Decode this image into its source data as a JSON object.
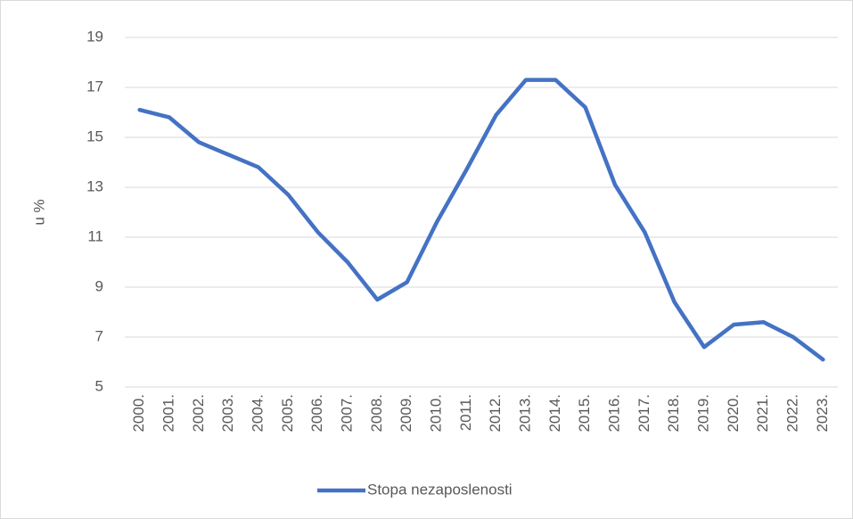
{
  "chart_data": {
    "type": "line",
    "y_label": "u %",
    "categories": [
      "2000.",
      "2001.",
      "2002.",
      "2003.",
      "2004.",
      "2005.",
      "2006.",
      "2007.",
      "2008.",
      "2009.",
      "2010.",
      "2011.",
      "2012.",
      "2013.",
      "2014.",
      "2015.",
      "2016.",
      "2017.",
      "2018.",
      "2019.",
      "2020.",
      "2021.",
      "2022.",
      "2023."
    ],
    "series": [
      {
        "name": "Stopa nezaposlenosti",
        "color": "#4472c4",
        "values": [
          16.1,
          15.8,
          14.8,
          14.3,
          13.8,
          12.7,
          11.2,
          10.0,
          8.5,
          9.2,
          11.6,
          13.7,
          15.9,
          17.3,
          17.3,
          16.2,
          13.1,
          11.2,
          8.4,
          6.6,
          7.5,
          7.6,
          7.0,
          6.1
        ]
      }
    ],
    "ylim": [
      5,
      19
    ],
    "yticks": [
      5,
      7,
      9,
      11,
      13,
      15,
      17,
      19
    ],
    "grid": true,
    "legend": "bottom"
  }
}
